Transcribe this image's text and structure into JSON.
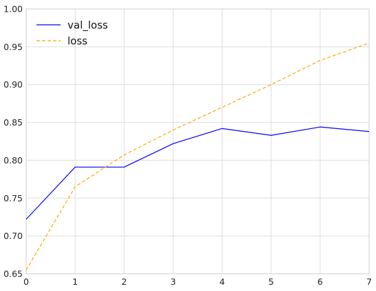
{
  "chart_data": {
    "type": "line",
    "title": "",
    "xlabel": "",
    "ylabel": "",
    "x": [
      0,
      1,
      2,
      3,
      4,
      5,
      6,
      7
    ],
    "xlim": [
      0,
      7
    ],
    "ylim": [
      0.65,
      1.0
    ],
    "xticks": [
      "0",
      "1",
      "2",
      "3",
      "4",
      "5",
      "6",
      "7"
    ],
    "yticks": [
      "0.65",
      "0.70",
      "0.75",
      "0.80",
      "0.85",
      "0.90",
      "0.95",
      "1.00"
    ],
    "ytick_values": [
      0.65,
      0.7,
      0.75,
      0.8,
      0.85,
      0.9,
      0.95,
      1.0
    ],
    "grid": true,
    "legend_position": "top-left",
    "series": [
      {
        "name": "val_loss",
        "values": [
          0.722,
          0.791,
          0.791,
          0.822,
          0.842,
          0.833,
          0.844,
          0.838
        ],
        "color": "#0000ff",
        "style": "solid"
      },
      {
        "name": "loss",
        "values": [
          0.655,
          0.765,
          0.807,
          0.84,
          0.87,
          0.9,
          0.932,
          0.955
        ],
        "color": "#ffa500",
        "style": "dashed"
      }
    ]
  }
}
